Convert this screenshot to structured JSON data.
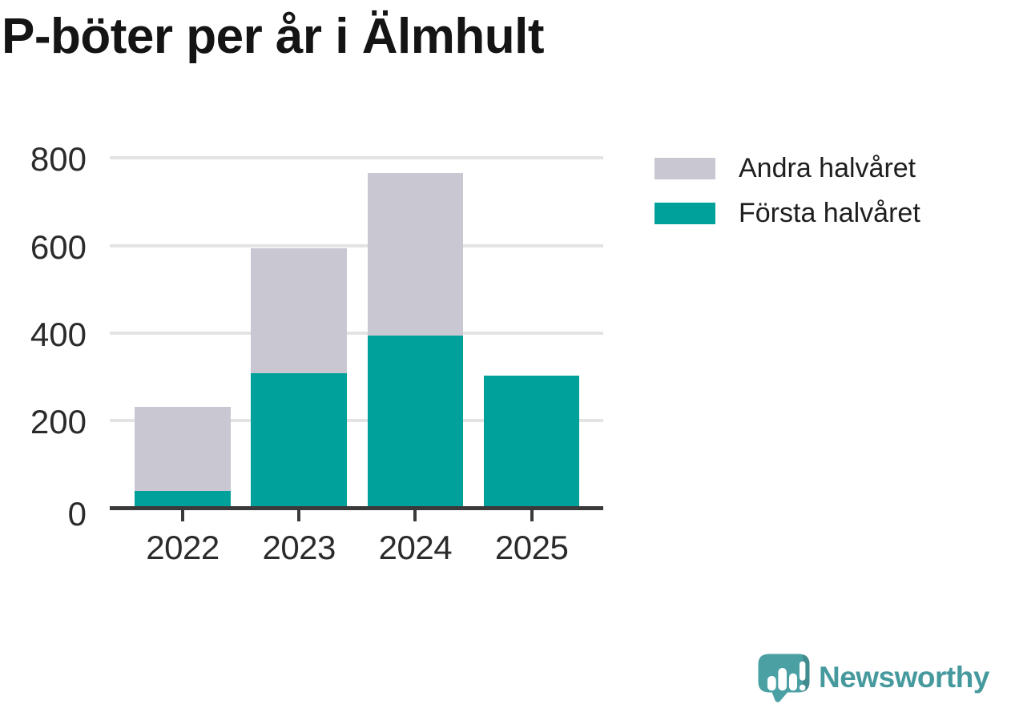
{
  "title": "P-böter per år i Älmhult",
  "chart_data": {
    "type": "bar",
    "stacked": true,
    "title": "P-böter per år i Älmhult",
    "categories": [
      "2022",
      "2023",
      "2024",
      "2025"
    ],
    "series": [
      {
        "name": "Första halvåret",
        "color": "#00a19a",
        "values": [
          40,
          309,
          394,
          302
        ]
      },
      {
        "name": "Andra halvåret",
        "color": "#c9c7d2",
        "values": [
          192,
          284,
          371,
          0
        ]
      }
    ],
    "totals": [
      232,
      593,
      765,
      302
    ],
    "xlabel": "",
    "ylabel": "",
    "ylim": [
      0,
      800
    ],
    "yticks": [
      0,
      200,
      400,
      600,
      800
    ],
    "grid": "horizontal",
    "gridline_color": "#e3e3e3",
    "axis_color": "#3a3a3a",
    "legend_position": "right-top"
  },
  "legend": {
    "items": [
      {
        "label": "Andra halvåret",
        "color": "#c9c7d2"
      },
      {
        "label": "Första halvåret",
        "color": "#00a19a"
      }
    ]
  },
  "branding": {
    "logo_text": "Newsworthy",
    "logo_color": "#469a9e",
    "logo_icon": "newsworthy-speech-bubble-bar-chart-icon",
    "logo_bubble_color": "#4aa0a3"
  }
}
